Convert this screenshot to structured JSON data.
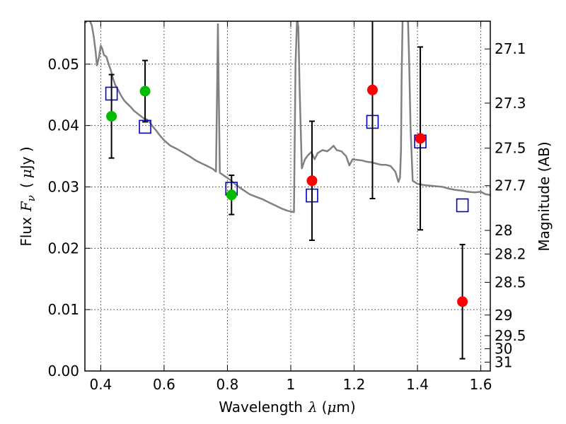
{
  "chart_data": {
    "type": "scatter",
    "xlabel_main": "Wavelength",
    "xlabel_symbol": "λ",
    "xlabel_unit_open": "(",
    "xlabel_unit_mu": "μ",
    "xlabel_unit_rest": "m)",
    "ylabel_main": "Flux",
    "ylabel_symbol": "F",
    "ylabel_symbol_sub": "ν",
    "ylabel_unit_open": "(",
    "ylabel_unit_mu": "μ",
    "ylabel_unit_rest": "Jy )",
    "ylabel_right": "Magnitude (AB)",
    "xlim": [
      0.35,
      1.63
    ],
    "ylim": [
      0.0,
      0.057
    ],
    "grid": true,
    "x_ticks": [
      {
        "value": 0.4,
        "label": "0.4"
      },
      {
        "value": 0.6,
        "label": "0.6"
      },
      {
        "value": 0.8,
        "label": "0.8"
      },
      {
        "value": 1.0,
        "label": "1"
      },
      {
        "value": 1.2,
        "label": "1.2"
      },
      {
        "value": 1.4,
        "label": "1.4"
      },
      {
        "value": 1.6,
        "label": "1.6"
      }
    ],
    "y_ticks": [
      {
        "value": 0.0,
        "label": "0.00"
      },
      {
        "value": 0.01,
        "label": "0.01"
      },
      {
        "value": 0.02,
        "label": "0.02"
      },
      {
        "value": 0.03,
        "label": "0.03"
      },
      {
        "value": 0.04,
        "label": "0.04"
      },
      {
        "value": 0.05,
        "label": "0.05"
      }
    ],
    "right_ticks": [
      {
        "mag": 27.1,
        "label": "27.1"
      },
      {
        "mag": 27.3,
        "label": "27.3"
      },
      {
        "mag": 27.5,
        "label": "27.5"
      },
      {
        "mag": 27.7,
        "label": "27.7"
      },
      {
        "mag": 28.0,
        "label": "28"
      },
      {
        "mag": 28.2,
        "label": "28.2"
      },
      {
        "mag": 28.5,
        "label": "28.5"
      },
      {
        "mag": 29.0,
        "label": "29"
      },
      {
        "mag": 29.5,
        "label": "29.5"
      },
      {
        "mag": 30.0,
        "label": "30"
      },
      {
        "mag": 31.0,
        "label": "31"
      }
    ],
    "series": [
      {
        "kind": "template_spectrum",
        "color": "#808080",
        "segments": [
          [
            [
              0.352,
              0.0567
            ],
            [
              0.36,
              0.0575
            ],
            [
              0.366,
              0.057
            ],
            [
              0.372,
              0.0563
            ],
            [
              0.378,
              0.0545
            ],
            [
              0.384,
              0.052
            ],
            [
              0.388,
              0.0498
            ],
            [
              0.394,
              0.051
            ],
            [
              0.4,
              0.053
            ],
            [
              0.405,
              0.0525
            ],
            [
              0.41,
              0.0515
            ],
            [
              0.418,
              0.0512
            ],
            [
              0.425,
              0.05
            ],
            [
              0.432,
              0.049
            ],
            [
              0.438,
              0.0478
            ],
            [
              0.445,
              0.0467
            ],
            [
              0.455,
              0.0458
            ],
            [
              0.465,
              0.0448
            ],
            [
              0.475,
              0.044
            ],
            [
              0.485,
              0.0435
            ],
            [
              0.495,
              0.043
            ],
            [
              0.505,
              0.0424
            ],
            [
              0.515,
              0.042
            ],
            [
              0.525,
              0.0416
            ],
            [
              0.535,
              0.0412
            ],
            [
              0.545,
              0.041
            ],
            [
              0.555,
              0.0405
            ],
            [
              0.565,
              0.0398
            ],
            [
              0.575,
              0.0392
            ],
            [
              0.585,
              0.0385
            ],
            [
              0.6,
              0.0376
            ],
            [
              0.62,
              0.0367
            ],
            [
              0.64,
              0.0362
            ],
            [
              0.66,
              0.0356
            ],
            [
              0.68,
              0.035
            ],
            [
              0.7,
              0.0343
            ],
            [
              0.72,
              0.0338
            ],
            [
              0.74,
              0.0333
            ],
            [
              0.755,
              0.0329
            ],
            [
              0.764,
              0.0325
            ],
            [
              0.768,
              0.048
            ],
            [
              0.77,
              0.0565
            ],
            [
              0.772,
              0.048
            ],
            [
              0.776,
              0.0323
            ],
            [
              0.79,
              0.0318
            ],
            [
              0.81,
              0.0311
            ],
            [
              0.83,
              0.0302
            ],
            [
              0.85,
              0.0295
            ],
            [
              0.87,
              0.0288
            ],
            [
              0.89,
              0.0284
            ],
            [
              0.91,
              0.028
            ],
            [
              0.93,
              0.0275
            ],
            [
              0.95,
              0.027
            ],
            [
              0.97,
              0.0265
            ],
            [
              0.99,
              0.0261
            ],
            [
              1.01,
              0.0259
            ],
            [
              1.015,
              0.05
            ],
            [
              1.02,
              0.0575
            ],
            [
              1.024,
              0.056
            ],
            [
              1.028,
              0.046
            ],
            [
              1.035,
              0.033
            ],
            [
              1.045,
              0.0345
            ],
            [
              1.055,
              0.0352
            ],
            [
              1.065,
              0.0357
            ],
            [
              1.075,
              0.0345
            ],
            [
              1.085,
              0.0355
            ],
            [
              1.1,
              0.036
            ],
            [
              1.115,
              0.0358
            ],
            [
              1.125,
              0.0362
            ],
            [
              1.135,
              0.0367
            ],
            [
              1.145,
              0.036
            ],
            [
              1.16,
              0.0358
            ],
            [
              1.175,
              0.035
            ],
            [
              1.185,
              0.0335
            ],
            [
              1.195,
              0.0345
            ],
            [
              1.21,
              0.0344
            ],
            [
              1.225,
              0.0343
            ],
            [
              1.24,
              0.0341
            ],
            [
              1.255,
              0.034
            ],
            [
              1.27,
              0.0338
            ],
            [
              1.285,
              0.0336
            ],
            [
              1.3,
              0.0336
            ],
            [
              1.315,
              0.0334
            ],
            [
              1.33,
              0.0325
            ],
            [
              1.34,
              0.0308
            ],
            [
              1.345,
              0.0315
            ],
            [
              1.348,
              0.036
            ],
            [
              1.35,
              0.048
            ],
            [
              1.353,
              0.057
            ],
            [
              1.37,
              0.0575
            ],
            [
              1.374,
              0.05
            ],
            [
              1.378,
              0.04
            ],
            [
              1.385,
              0.031
            ],
            [
              1.4,
              0.0305
            ],
            [
              1.42,
              0.0303
            ],
            [
              1.44,
              0.0302
            ],
            [
              1.46,
              0.0301
            ],
            [
              1.48,
              0.03
            ],
            [
              1.5,
              0.0297
            ],
            [
              1.52,
              0.0295
            ],
            [
              1.54,
              0.0294
            ],
            [
              1.56,
              0.0292
            ],
            [
              1.58,
              0.0291
            ],
            [
              1.6,
              0.0292
            ],
            [
              1.615,
              0.0288
            ],
            [
              1.63,
              0.0287
            ]
          ]
        ]
      },
      {
        "kind": "model_squares",
        "color": "#0000cc",
        "points": [
          {
            "x": 0.434,
            "y": 0.0452
          },
          {
            "x": 0.54,
            "y": 0.0398
          },
          {
            "x": 0.813,
            "y": 0.0297
          },
          {
            "x": 1.067,
            "y": 0.0286
          },
          {
            "x": 1.258,
            "y": 0.0406
          },
          {
            "x": 1.409,
            "y": 0.0374
          },
          {
            "x": 1.542,
            "y": 0.027
          }
        ]
      },
      {
        "kind": "observed_green",
        "color": "#00bb00",
        "points": [
          {
            "x": 0.434,
            "y": 0.0415,
            "err": 0.0068
          },
          {
            "x": 0.54,
            "y": 0.0456,
            "err": 0.005
          },
          {
            "x": 0.813,
            "y": 0.0287,
            "err": 0.0032
          }
        ]
      },
      {
        "kind": "observed_red",
        "color": "#ff0000",
        "points": [
          {
            "x": 1.067,
            "y": 0.031,
            "err": 0.0097
          },
          {
            "x": 1.258,
            "y": 0.0458,
            "err": 0.0177
          },
          {
            "x": 1.409,
            "y": 0.0379,
            "err": 0.0149
          },
          {
            "x": 1.542,
            "y": 0.0113,
            "err": 0.0093
          }
        ]
      }
    ]
  }
}
